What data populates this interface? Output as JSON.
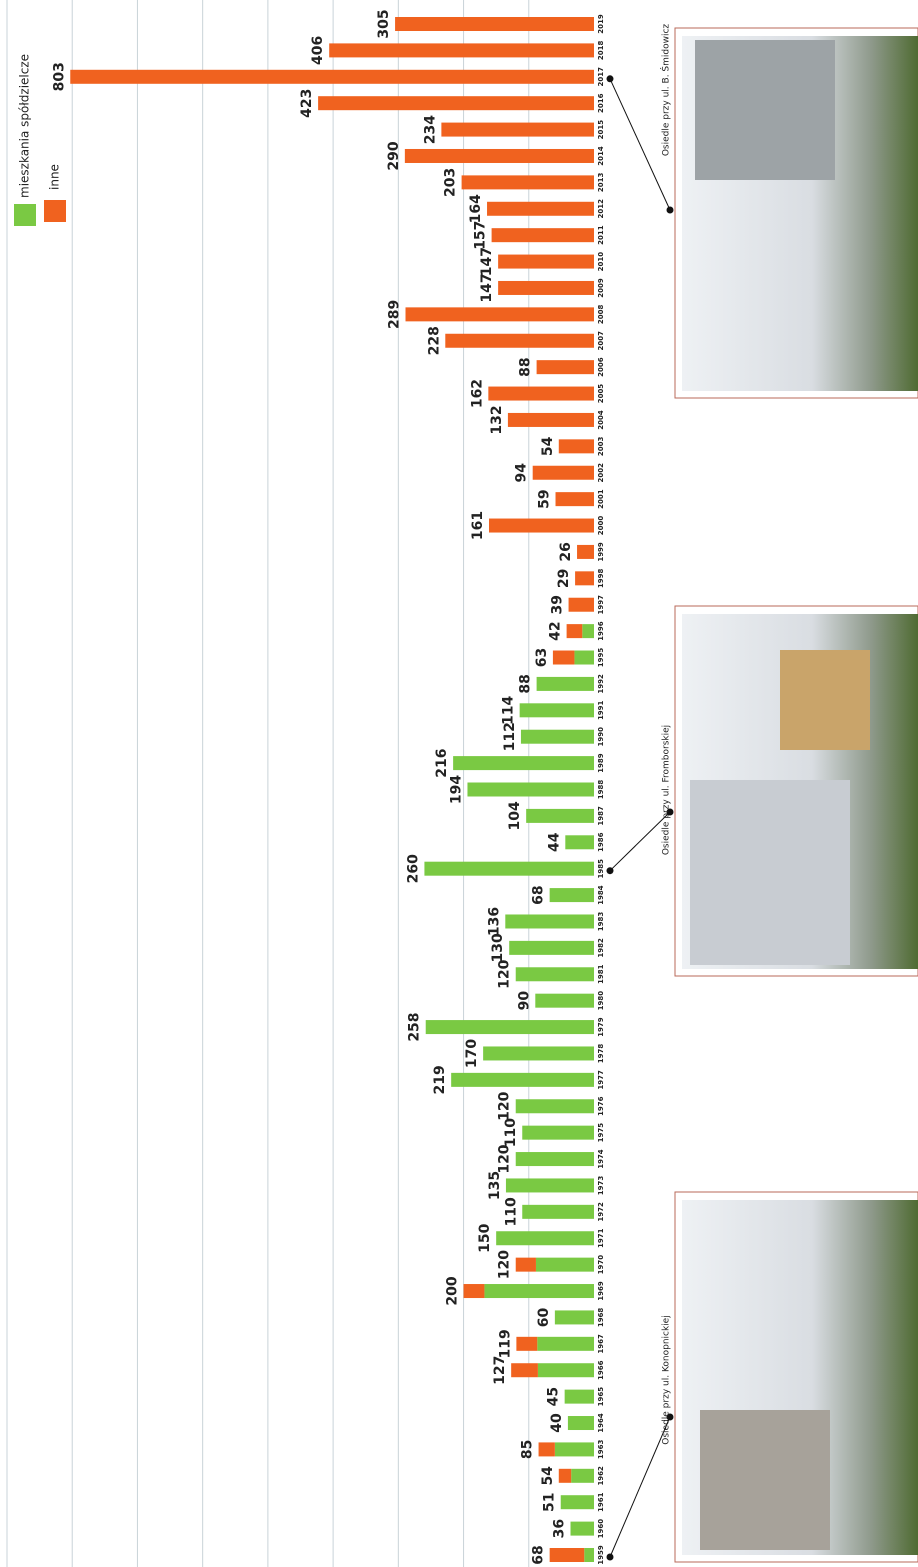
{
  "chart_data": {
    "type": "stacked-bar",
    "orientation": "rotated",
    "categories": [
      "1959",
      "1960",
      "1961",
      "1962",
      "1963",
      "1964",
      "1965",
      "1966",
      "1967",
      "1968",
      "1969",
      "1970",
      "1971",
      "1972",
      "1973",
      "1974",
      "1975",
      "1976",
      "1977",
      "1978",
      "1979",
      "1980",
      "1981",
      "1982",
      "1983",
      "1984",
      "1985",
      "1986",
      "1987",
      "1988",
      "1989",
      "1990",
      "1991",
      "1992",
      "1995",
      "1996",
      "1997",
      "1998",
      "1999",
      "2000",
      "2001",
      "2002",
      "2003",
      "2004",
      "2005",
      "2006",
      "2007",
      "2008",
      "2009",
      "2010",
      "2011",
      "2012",
      "2013",
      "2014",
      "2015",
      "2016",
      "2017",
      "2018",
      "2019"
    ],
    "series": [
      {
        "name": "mieszkania spółdzielcze",
        "color": "#7ac943",
        "values": [
          15,
          36,
          51,
          35,
          60,
          40,
          45,
          86,
          87,
          60,
          168,
          89,
          150,
          110,
          135,
          120,
          110,
          120,
          219,
          170,
          258,
          90,
          120,
          130,
          136,
          68,
          260,
          44,
          104,
          194,
          216,
          112,
          114,
          88,
          30,
          18,
          null,
          null,
          null,
          null,
          null,
          null,
          null,
          null,
          null,
          null,
          null,
          null,
          null,
          null,
          null,
          null,
          null,
          null,
          null,
          null,
          null,
          null,
          null
        ]
      },
      {
        "name": "inne",
        "color": "#f0621f",
        "values": [
          53,
          null,
          null,
          19,
          25,
          null,
          null,
          41,
          32,
          null,
          32,
          31,
          null,
          null,
          null,
          null,
          null,
          null,
          null,
          null,
          null,
          null,
          null,
          null,
          null,
          null,
          null,
          null,
          null,
          null,
          null,
          null,
          null,
          null,
          33,
          24,
          39,
          29,
          26,
          161,
          59,
          94,
          54,
          132,
          162,
          88,
          228,
          289,
          147,
          147,
          157,
          164,
          203,
          290,
          234,
          423,
          803,
          406,
          305
        ]
      }
    ],
    "totals": [
      68,
      36,
      51,
      54,
      85,
      40,
      45,
      127,
      119,
      60,
      200,
      120,
      150,
      110,
      135,
      120,
      110,
      120,
      219,
      170,
      258,
      90,
      120,
      130,
      136,
      68,
      260,
      44,
      104,
      194,
      216,
      112,
      114,
      88,
      63,
      42,
      39,
      29,
      26,
      161,
      59,
      94,
      54,
      132,
      162,
      88,
      228,
      289,
      147,
      147,
      157,
      164,
      203,
      290,
      234,
      423,
      803,
      406,
      305
    ],
    "ylim": [
      0,
      900
    ],
    "grid_lines": [
      100,
      200,
      300,
      400,
      500,
      600,
      700,
      800,
      900
    ]
  },
  "photos": [
    {
      "caption": "Osiedle przy ul. Konopnickiej",
      "points_to": "1959"
    },
    {
      "caption": "Osiedle przy ul. Fromborskiej",
      "points_to": "1985"
    },
    {
      "caption": "Osiedle przy ul. B. Śmidowicz",
      "points_to": "2017"
    }
  ]
}
